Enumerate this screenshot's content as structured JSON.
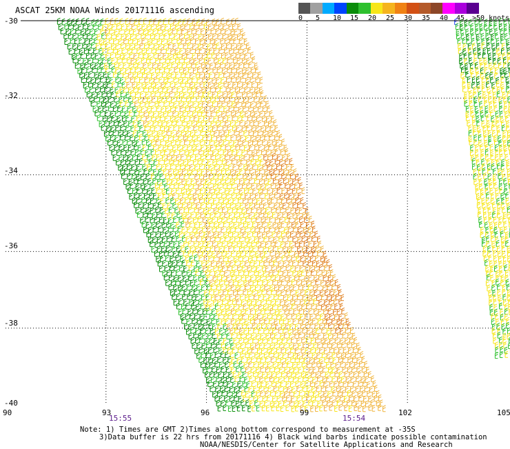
{
  "title": "ASCAT 25KM NOAA Winds 20171116 ascending",
  "legend": {
    "labels": [
      "0",
      "5",
      "10",
      "15",
      "20",
      "25",
      "30",
      "35",
      "40",
      "45",
      ">50 knots"
    ],
    "colors": [
      "#555555",
      "#a0a0a0",
      "#00aaff",
      "#0044ff",
      "#0a8c0a",
      "#2ec02e",
      "#f7e61a",
      "#f5b41e",
      "#f08214",
      "#d25014",
      "#b45a2a",
      "#8c4628",
      "#ff00ff",
      "#aa00dd",
      "#5a0090"
    ]
  },
  "axes": {
    "x_ticks": [
      "90",
      "93",
      "96",
      "99",
      "102",
      "105"
    ],
    "y_ticks": [
      "-30",
      "-32",
      "-34",
      "-36",
      "-38",
      "-40"
    ],
    "lon_range": [
      90,
      105
    ],
    "lat_range": [
      -40,
      -30
    ]
  },
  "times": [
    "15:55",
    "15:54"
  ],
  "notes": [
    "Note: 1) Times are GMT 2)Times along bottom correspond to measurement at -35S",
    "3)Data buffer is 22 hrs from 20171116 4) Black wind barbs indicate possible contamination",
    "NOAA/NESDIS/Center for Satellite Applications and Research"
  ],
  "swath_colors": {
    "green": "#0a8c0a",
    "lightgreen": "#2ec02e",
    "yellow": "#f7e61a",
    "orange": "#f0b43c",
    "darkorange": "#e08020",
    "blue": "#2040ff"
  }
}
